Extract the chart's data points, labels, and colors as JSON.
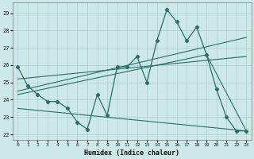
{
  "xlabel": "Humidex (Indice chaleur)",
  "xlim": [
    -0.5,
    23.5
  ],
  "ylim": [
    21.7,
    29.6
  ],
  "yticks": [
    22,
    23,
    24,
    25,
    26,
    27,
    28,
    29
  ],
  "xticks": [
    0,
    1,
    2,
    3,
    4,
    5,
    6,
    7,
    8,
    9,
    10,
    11,
    12,
    13,
    14,
    15,
    16,
    17,
    18,
    19,
    20,
    21,
    22,
    23
  ],
  "bg_color": "#cde8e8",
  "line_color": "#2a6e65",
  "grid_color": "#aacfcf",
  "main_line": {
    "x": [
      0,
      1,
      2,
      3,
      4,
      5,
      6,
      7,
      8,
      9,
      10,
      11,
      12,
      13,
      14,
      15,
      16,
      17,
      18,
      19,
      20,
      21,
      22,
      23
    ],
    "y": [
      25.9,
      24.8,
      24.3,
      23.9,
      23.9,
      23.5,
      22.7,
      22.3,
      24.3,
      23.1,
      25.9,
      25.9,
      26.5,
      25.0,
      27.4,
      29.2,
      28.5,
      27.4,
      28.2,
      26.6,
      24.6,
      23.0,
      22.2,
      22.2
    ]
  },
  "trend_lines": [
    {
      "x": [
        0,
        23
      ],
      "y": [
        24.5,
        27.6
      ]
    },
    {
      "x": [
        0,
        23
      ],
      "y": [
        25.2,
        26.5
      ]
    },
    {
      "x": [
        0,
        19,
        23
      ],
      "y": [
        24.3,
        26.6,
        22.2
      ]
    },
    {
      "x": [
        0,
        23
      ],
      "y": [
        23.5,
        22.2
      ]
    }
  ]
}
